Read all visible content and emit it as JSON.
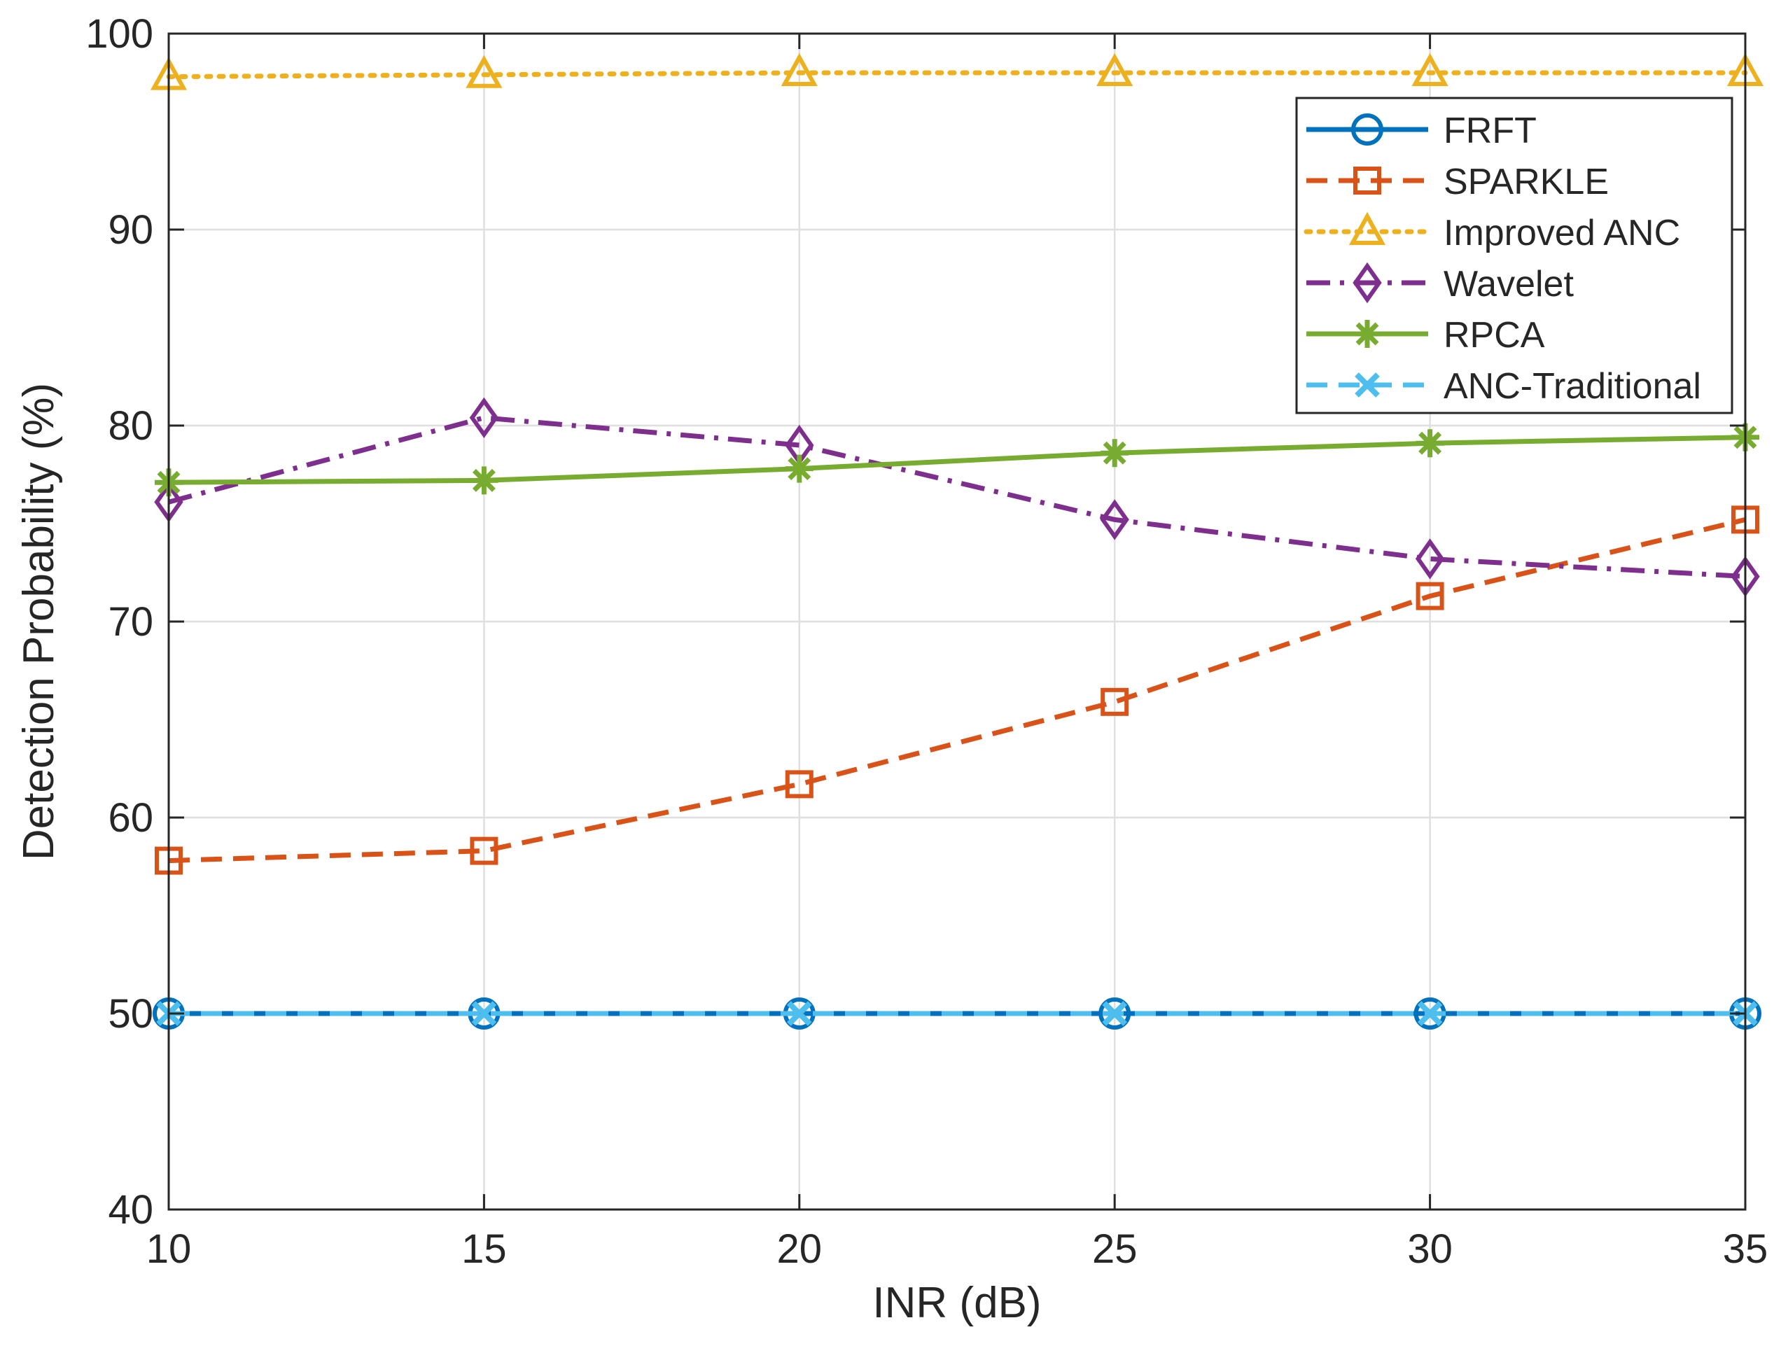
{
  "chart_data": {
    "type": "line",
    "xlabel": "INR (dB)",
    "ylabel": "Detection Probability (%)",
    "xlim": [
      10,
      35
    ],
    "ylim": [
      40,
      100
    ],
    "x": [
      10,
      15,
      20,
      25,
      30,
      35
    ],
    "x_ticks": [
      "10",
      "15",
      "20",
      "25",
      "30",
      "35"
    ],
    "y_ticks": [
      "40",
      "50",
      "60",
      "70",
      "80",
      "90",
      "100"
    ],
    "grid": true,
    "legend_position": "top-right",
    "series": [
      {
        "name": "FRFT",
        "values": [
          50,
          50,
          50,
          50,
          50,
          50
        ],
        "color": "#0072BD",
        "dash": "solid",
        "marker": "circle"
      },
      {
        "name": "SPARKLE",
        "values": [
          57.8,
          58.3,
          61.7,
          65.9,
          71.3,
          75.2
        ],
        "color": "#D95319",
        "dash": "dashed",
        "marker": "square"
      },
      {
        "name": "Improved ANC",
        "values": [
          97.8,
          97.9,
          98.0,
          98.0,
          98.0,
          98.0
        ],
        "color": "#EDB120",
        "dash": "dotted",
        "marker": "triangle"
      },
      {
        "name": "Wavelet",
        "values": [
          76.1,
          80.4,
          79.0,
          75.2,
          73.2,
          72.3
        ],
        "color": "#7E2F8E",
        "dash": "dashdot",
        "marker": "diamond"
      },
      {
        "name": "RPCA",
        "values": [
          77.1,
          77.2,
          77.8,
          78.6,
          79.1,
          79.4
        ],
        "color": "#77AC30",
        "dash": "solid",
        "marker": "asterisk"
      },
      {
        "name": "ANC-Traditional",
        "values": [
          50,
          50,
          50,
          50,
          50,
          50
        ],
        "color": "#4DBEEE",
        "dash": "dashed",
        "marker": "x"
      }
    ]
  }
}
